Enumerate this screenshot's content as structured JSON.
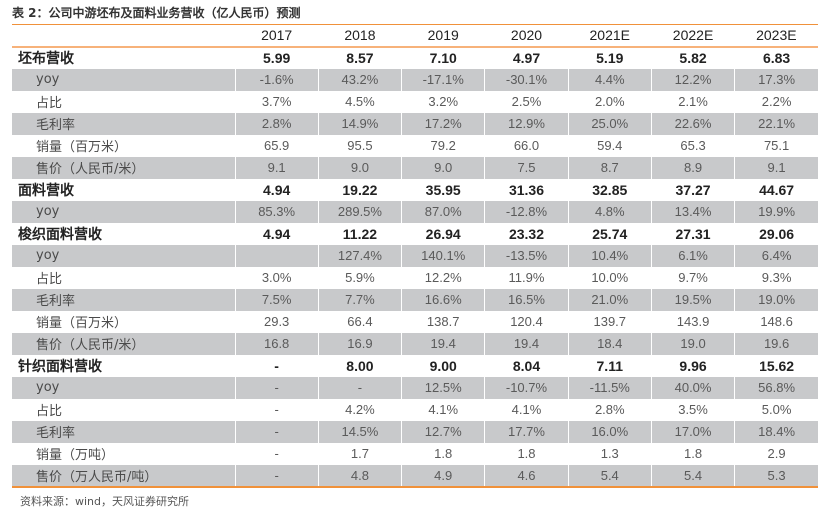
{
  "title": "表 2：公司中游坯布及面料业务营收（亿人民币）预测",
  "columns": [
    "",
    "2017",
    "2018",
    "2019",
    "2020",
    "2021E",
    "2022E",
    "2023E"
  ],
  "rows": [
    {
      "label": "坯布营收",
      "bold": true,
      "values": [
        "5.99",
        "8.57",
        "7.10",
        "4.97",
        "5.19",
        "5.82",
        "6.83"
      ]
    },
    {
      "label": "yoy",
      "values": [
        "-1.6%",
        "43.2%",
        "-17.1%",
        "-30.1%",
        "4.4%",
        "12.2%",
        "17.3%"
      ]
    },
    {
      "label": "占比",
      "values": [
        "3.7%",
        "4.5%",
        "3.2%",
        "2.5%",
        "2.0%",
        "2.1%",
        "2.2%"
      ]
    },
    {
      "label": "毛利率",
      "values": [
        "2.8%",
        "14.9%",
        "17.2%",
        "12.9%",
        "25.0%",
        "22.6%",
        "22.1%"
      ]
    },
    {
      "label": "销量（百万米）",
      "values": [
        "65.9",
        "95.5",
        "79.2",
        "66.0",
        "59.4",
        "65.3",
        "75.1"
      ]
    },
    {
      "label": "售价（人民币/米）",
      "values": [
        "9.1",
        "9.0",
        "9.0",
        "7.5",
        "8.7",
        "8.9",
        "9.1"
      ]
    },
    {
      "label": "面料营收",
      "bold": true,
      "values": [
        "4.94",
        "19.22",
        "35.95",
        "31.36",
        "32.85",
        "37.27",
        "44.67"
      ]
    },
    {
      "label": "yoy",
      "values": [
        "85.3%",
        "289.5%",
        "87.0%",
        "-12.8%",
        "4.8%",
        "13.4%",
        "19.9%"
      ]
    },
    {
      "label": "梭织面料营收",
      "bold": true,
      "values": [
        "4.94",
        "11.22",
        "26.94",
        "23.32",
        "25.74",
        "27.31",
        "29.06"
      ]
    },
    {
      "label": "yoy",
      "values": [
        "",
        "127.4%",
        "140.1%",
        "-13.5%",
        "10.4%",
        "6.1%",
        "6.4%"
      ]
    },
    {
      "label": "占比",
      "values": [
        "3.0%",
        "5.9%",
        "12.2%",
        "11.9%",
        "10.0%",
        "9.7%",
        "9.3%"
      ]
    },
    {
      "label": "毛利率",
      "values": [
        "7.5%",
        "7.7%",
        "16.6%",
        "16.5%",
        "21.0%",
        "19.5%",
        "19.0%"
      ]
    },
    {
      "label": "销量（百万米）",
      "values": [
        "29.3",
        "66.4",
        "138.7",
        "120.4",
        "139.7",
        "143.9",
        "148.6"
      ]
    },
    {
      "label": "售价（人民币/米）",
      "values": [
        "16.8",
        "16.9",
        "19.4",
        "19.4",
        "18.4",
        "19.0",
        "19.6"
      ]
    },
    {
      "label": "针织面料营收",
      "bold": true,
      "values": [
        "-",
        "8.00",
        "9.00",
        "8.04",
        "7.11",
        "9.96",
        "15.62"
      ]
    },
    {
      "label": "yoy",
      "values": [
        "-",
        "-",
        "12.5%",
        "-10.7%",
        "-11.5%",
        "40.0%",
        "56.8%"
      ]
    },
    {
      "label": "占比",
      "values": [
        "-",
        "4.2%",
        "4.1%",
        "4.1%",
        "2.8%",
        "3.5%",
        "5.0%"
      ]
    },
    {
      "label": "毛利率",
      "values": [
        "-",
        "14.5%",
        "12.7%",
        "17.7%",
        "16.0%",
        "17.0%",
        "18.4%"
      ]
    },
    {
      "label": "销量（万吨）",
      "values": [
        "-",
        "1.7",
        "1.8",
        "1.8",
        "1.3",
        "1.8",
        "2.9"
      ]
    },
    {
      "label": "售价（万人民币/吨）",
      "values": [
        "-",
        "4.8",
        "4.9",
        "4.6",
        "5.4",
        "5.4",
        "5.3"
      ]
    }
  ],
  "source": "资料来源：wind，天风证券研究所",
  "colors": {
    "accent_line": "#f0913a",
    "header_line": "#f7b27a",
    "stripe": "#c8c9cb"
  }
}
